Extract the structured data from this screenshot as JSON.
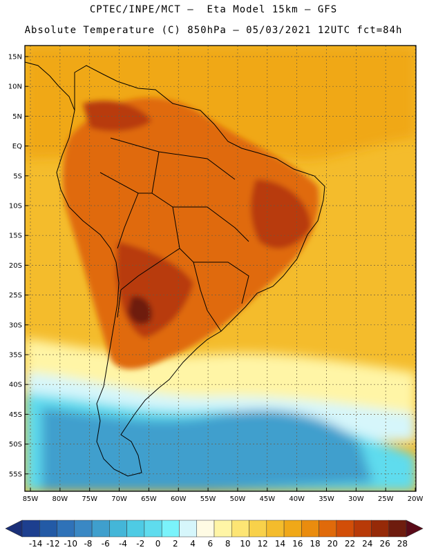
{
  "title": {
    "line1": "CPTEC/INPE/MCT –  Eta Model 15km – GFS",
    "line2": "Absolute Temperature (C) 850hPa – 05/03/2021 12UTC fct=84h"
  },
  "lat_labels": [
    "15N",
    "10N",
    "5N",
    "EQ",
    "5S",
    "10S",
    "15S",
    "20S",
    "25S",
    "30S",
    "35S",
    "40S",
    "45S",
    "50S",
    "55S"
  ],
  "lon_labels": [
    "85W",
    "80W",
    "75W",
    "70W",
    "65W",
    "60W",
    "55W",
    "50W",
    "45W",
    "40W",
    "35W",
    "30W",
    "25W",
    "20W"
  ],
  "colorbar": {
    "labels": [
      "-14",
      "-12",
      "-10",
      "-8",
      "-6",
      "-4",
      "-2",
      "0",
      "2",
      "4",
      "6",
      "8",
      "10",
      "12",
      "14",
      "16",
      "18",
      "20",
      "22",
      "24",
      "26",
      "28"
    ],
    "colors": [
      "#1d3f8f",
      "#235aa6",
      "#2f72b8",
      "#3a88c4",
      "#3f9fcd",
      "#44b6d8",
      "#4ecbe4",
      "#5fdcee",
      "#7af3fb",
      "#d6f6fb",
      "#fffbe4",
      "#fff5a6",
      "#fde574",
      "#f8d14a",
      "#f4bc2c",
      "#f0a818",
      "#ea8c0e",
      "#e06a0a",
      "#d24e08",
      "#b83a08",
      "#962a08",
      "#6e1c0e"
    ],
    "low_color": "#1a2f78",
    "high_color": "#5a0a18"
  },
  "map_colors": {
    "ocean_south": "#3f9fcd",
    "ocean_cold": "#5fdcee",
    "ocean_cool": "#d6f6fb",
    "ocean_mild": "#fff5a6",
    "ocean_warm": "#f4bc2c",
    "ocean_tropical": "#f0a818",
    "land_hot": "#e06a0a",
    "land_very_hot": "#b83a08",
    "land_extreme": "#6e1c0e",
    "coast": "#000000"
  }
}
